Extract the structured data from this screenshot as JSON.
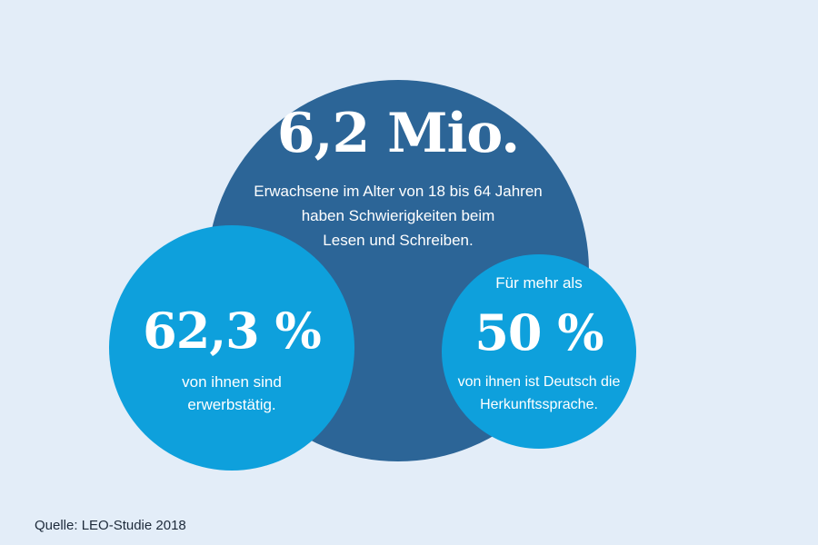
{
  "colors": {
    "background": "#e3edf8",
    "main_circle": "#2c6597",
    "secondary_circles": "#0ea0dc",
    "text": "#ffffff"
  },
  "main": {
    "figure": "6,2 Mio.",
    "desc": [
      "Erwachsene im Alter von 18 bis 64 Jahren",
      "haben Schwierigkeiten beim",
      "Lesen und Schreiben."
    ]
  },
  "left": {
    "figure": "62,3 %",
    "desc": [
      "von ihnen sind",
      "erwerbstätig."
    ]
  },
  "right": {
    "intro": "Für mehr als",
    "figure": "50 %",
    "desc": [
      "von ihnen ist Deutsch die",
      "Herkunftssprache."
    ]
  },
  "source": "Quelle: LEO-Studie 2018"
}
